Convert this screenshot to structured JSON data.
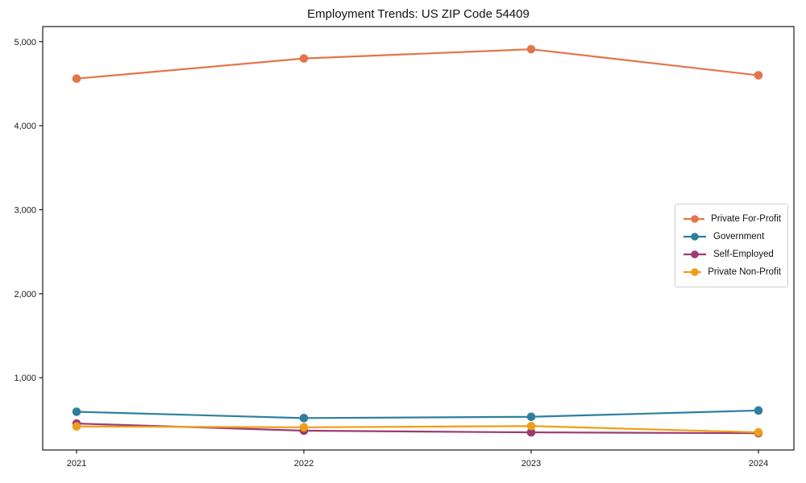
{
  "figure": {
    "background": "#ffffff",
    "spine_color": "#1a1a1a"
  },
  "chart_data": {
    "type": "line",
    "title": "Employment Trends: US ZIP Code 54409",
    "xlabel": "",
    "ylabel": "",
    "x_labels": [
      "2021",
      "2022",
      "2023",
      "2024"
    ],
    "y_ticks": [
      1000,
      2000,
      3000,
      4000,
      5000
    ],
    "y_tick_labels": [
      "1,000",
      "2,000",
      "3,000",
      "4,000",
      "5,000"
    ],
    "ylim": [
      140,
      5180
    ],
    "grid": false,
    "legend_position": "center right",
    "marker": "circle",
    "series": [
      {
        "name": "Private For-Profit",
        "color": "#e2754b",
        "values": [
          4560,
          4800,
          4910,
          4600
        ]
      },
      {
        "name": "Government",
        "color": "#2e7f9f",
        "values": [
          595,
          520,
          535,
          610
        ]
      },
      {
        "name": "Self-Employed",
        "color": "#9c3a72",
        "values": [
          455,
          370,
          350,
          340
        ]
      },
      {
        "name": "Private Non-Profit",
        "color": "#ef9e1b",
        "values": [
          420,
          410,
          425,
          350
        ]
      }
    ]
  }
}
